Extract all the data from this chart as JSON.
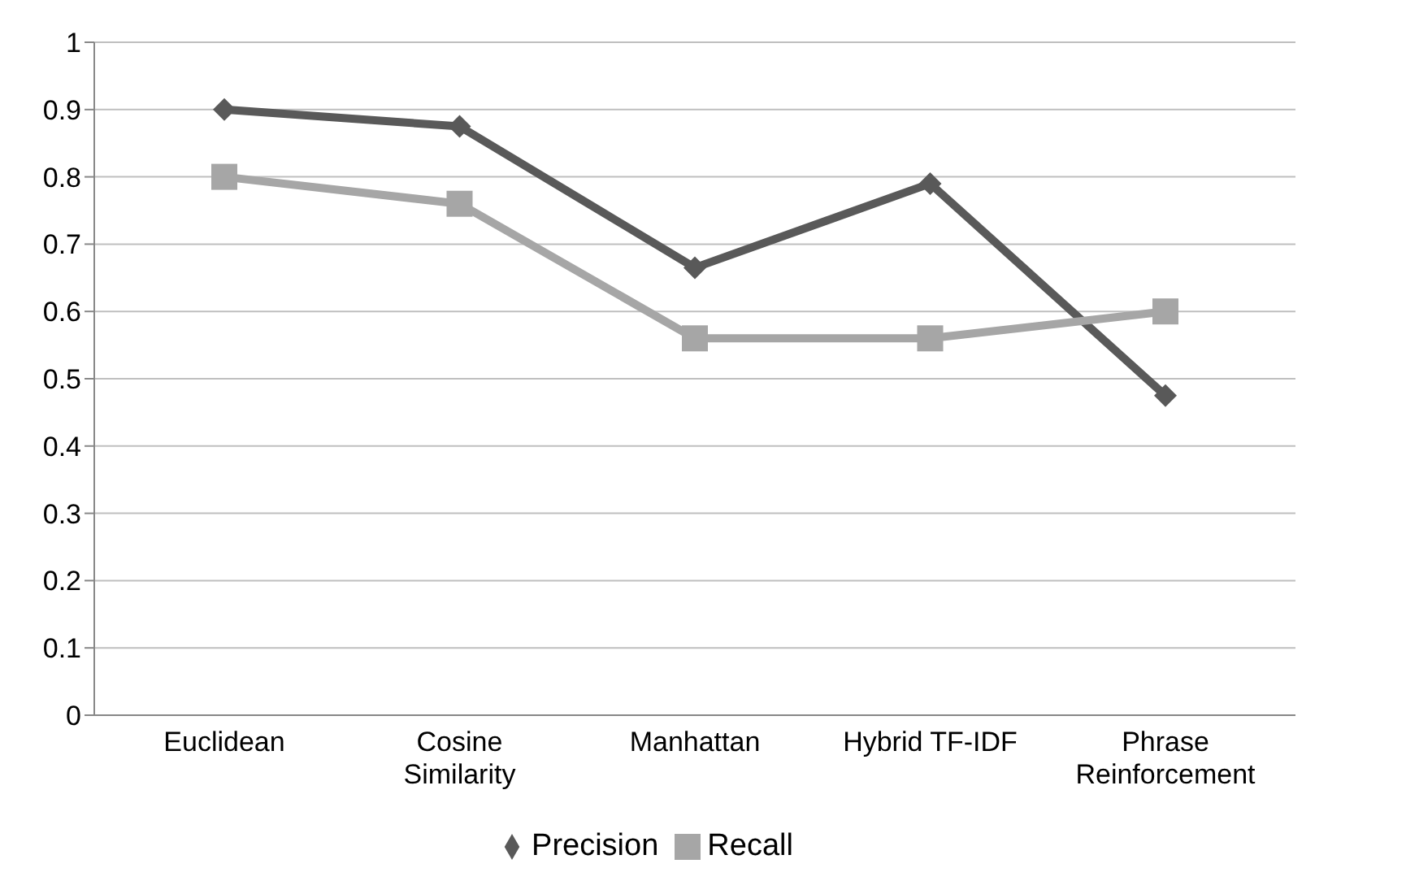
{
  "chart_data": {
    "type": "line",
    "categories": [
      "Euclidean",
      "Cosine Similarity",
      "Manhattan",
      "Hybrid TF-IDF",
      "Phrase Reinforcement"
    ],
    "series": [
      {
        "name": "Precision",
        "color": "#595959",
        "marker": "diamond",
        "values": [
          0.9,
          0.875,
          0.665,
          0.79,
          0.475
        ]
      },
      {
        "name": "Recall",
        "color": "#a6a6a6",
        "marker": "square",
        "values": [
          0.8,
          0.76,
          0.56,
          0.56,
          0.6
        ]
      }
    ],
    "ylim": [
      0,
      1
    ],
    "yticks": [
      0,
      0.1,
      0.2,
      0.3,
      0.4,
      0.5,
      0.6,
      0.7,
      0.8,
      0.9,
      1
    ],
    "grid": "y",
    "legend": "bottom"
  }
}
